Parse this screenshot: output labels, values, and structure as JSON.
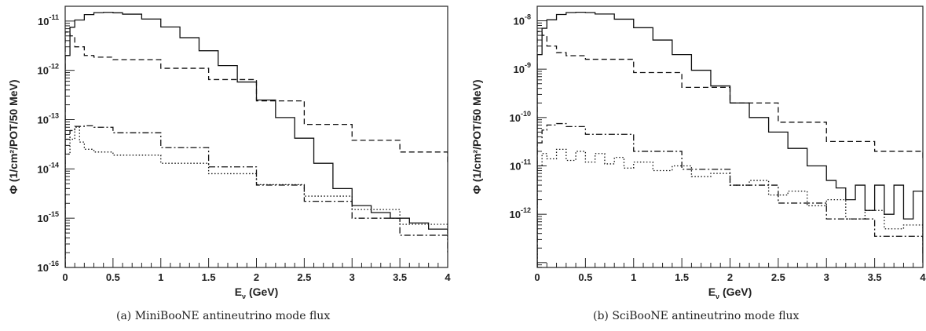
{
  "chart_data": [
    {
      "type": "line",
      "panel": "a",
      "caption": "(a) MiniBooNE antineutrino mode flux",
      "xlabel": "E",
      "xlabel_sub": "ν",
      "xlabel_unit": " (GeV)",
      "ylabel": "Φ (1/cm²/POT/50 MeV)",
      "xlim": [
        0,
        4
      ],
      "ylim_log10": [
        -16,
        -10.7
      ],
      "log_y": true,
      "xticks": [
        "0",
        "0.5",
        "1",
        "1.5",
        "2",
        "2.5",
        "3",
        "3.5",
        "4"
      ],
      "yticks": [
        {
          "exp": "-11"
        },
        {
          "exp": "-12"
        },
        {
          "exp": "-13"
        },
        {
          "exp": "-14"
        },
        {
          "exp": "-15"
        },
        {
          "exp": "-16"
        }
      ],
      "series": [
        {
          "style": "solid",
          "x": [
            0.0,
            0.05,
            0.1,
            0.2,
            0.3,
            0.4,
            0.5,
            0.6,
            0.8,
            1.0,
            1.2,
            1.4,
            1.6,
            1.8,
            2.0,
            2.2,
            2.4,
            2.6,
            2.8,
            3.0,
            3.2,
            3.4,
            3.6,
            3.8,
            4.0
          ],
          "y": [
            2e-12,
            7.5e-12,
            1.05e-11,
            1.35e-11,
            1.48e-11,
            1.5e-11,
            1.47e-11,
            1.38e-11,
            1.1e-11,
            7.6e-12,
            4.6e-12,
            2.5e-12,
            1.25e-12,
            5.8e-13,
            2.5e-13,
            1.1e-13,
            4.2e-14,
            1.3e-14,
            4e-15,
            1.8e-15,
            1.3e-15,
            1e-15,
            8e-16,
            6e-16,
            5e-16
          ]
        },
        {
          "style": "dashed",
          "x": [
            0.0,
            0.05,
            0.1,
            0.2,
            0.3,
            0.5,
            1.0,
            1.5,
            2.0,
            2.5,
            3.0,
            3.5,
            4.0
          ],
          "y": [
            6e-12,
            5e-12,
            3e-12,
            2e-12,
            1.85e-12,
            1.65e-12,
            1.1e-12,
            6.5e-13,
            2.4e-13,
            8e-14,
            3.8e-14,
            2.2e-14,
            1.3e-14
          ]
        },
        {
          "style": "dashdot",
          "x": [
            0.0,
            0.05,
            0.1,
            0.2,
            0.3,
            0.5,
            1.0,
            1.5,
            2.0,
            2.5,
            3.0,
            3.5,
            4.0
          ],
          "y": [
            4e-14,
            6e-14,
            7.3e-14,
            7.5e-14,
            7e-14,
            5.4e-14,
            2.7e-14,
            1.1e-14,
            4.7e-15,
            2.2e-15,
            1e-15,
            4.5e-16,
            2e-16
          ]
        },
        {
          "style": "dotted",
          "x": [
            0.0,
            0.05,
            0.1,
            0.15,
            0.2,
            0.3,
            0.5,
            1.0,
            1.5,
            2.0,
            2.5,
            3.0,
            3.5,
            4.0
          ],
          "y": [
            2e-14,
            4e-14,
            7e-14,
            3.5e-14,
            2.5e-14,
            2.2e-14,
            1.9e-14,
            1.3e-14,
            8e-15,
            4.8e-15,
            2.8e-15,
            1.5e-15,
            7.5e-16,
            3.5e-16
          ]
        }
      ]
    },
    {
      "type": "line",
      "panel": "b",
      "caption": "(b) SciBooNE antineutrino mode flux",
      "xlabel": "E",
      "xlabel_sub": "ν",
      "xlabel_unit": " (GeV)",
      "ylabel": "Φ (1/cm²/POT/50 MeV)",
      "xlim": [
        0,
        4
      ],
      "ylim_log10": [
        -13.1,
        -7.7
      ],
      "log_y": true,
      "xticks": [
        "0",
        "0.5",
        "1",
        "1.5",
        "2",
        "2.5",
        "3",
        "3.5",
        "4"
      ],
      "yticks": [
        {
          "exp": "-8"
        },
        {
          "exp": "-9"
        },
        {
          "exp": "-10"
        },
        {
          "exp": "-11"
        },
        {
          "exp": "-12"
        }
      ],
      "series": [
        {
          "style": "solid",
          "x": [
            0.0,
            0.05,
            0.1,
            0.2,
            0.3,
            0.4,
            0.5,
            0.6,
            0.8,
            1.0,
            1.2,
            1.4,
            1.6,
            1.8,
            2.0,
            2.2,
            2.4,
            2.6,
            2.8,
            3.0,
            3.1,
            3.2,
            3.3,
            3.4,
            3.5,
            3.6,
            3.7,
            3.8,
            3.9,
            4.0
          ],
          "y": [
            2e-09,
            7e-09,
            1.05e-08,
            1.35e-08,
            1.48e-08,
            1.5e-08,
            1.48e-08,
            1.38e-08,
            1.08e-08,
            7.2e-09,
            4e-09,
            2e-09,
            9.5e-10,
            4.5e-10,
            2e-10,
            1e-10,
            5e-11,
            2.3e-11,
            1e-11,
            5e-12,
            3.5e-12,
            2e-12,
            4e-12,
            1.2e-12,
            4e-12,
            1e-12,
            4e-12,
            8e-13,
            3e-12,
            1e-13
          ]
        },
        {
          "style": "dashed",
          "x": [
            0.0,
            0.05,
            0.1,
            0.2,
            0.3,
            0.5,
            1.0,
            1.5,
            2.0,
            2.5,
            3.0,
            3.5,
            4.0
          ],
          "y": [
            6e-09,
            5e-09,
            3e-09,
            2.2e-09,
            1.9e-09,
            1.6e-09,
            8.5e-10,
            4.2e-10,
            2e-10,
            8e-11,
            3.2e-11,
            2e-11,
            1.3e-11
          ]
        },
        {
          "style": "dashdot",
          "x": [
            0.0,
            0.05,
            0.1,
            0.2,
            0.3,
            0.5,
            1.0,
            1.5,
            2.0,
            2.5,
            3.0,
            3.5,
            4.0
          ],
          "y": [
            3e-11,
            5.5e-11,
            7e-11,
            7.5e-11,
            6.5e-11,
            4.5e-11,
            2e-11,
            8.5e-12,
            4e-12,
            1.7e-12,
            8e-13,
            3.5e-13,
            1.5e-13
          ]
        },
        {
          "style": "dotted",
          "x": [
            0.0,
            0.05,
            0.1,
            0.2,
            0.3,
            0.4,
            0.5,
            0.6,
            0.7,
            0.8,
            0.9,
            1.0,
            1.2,
            1.4,
            1.6,
            1.8,
            2.0,
            2.2,
            2.4,
            2.6,
            2.8,
            3.0,
            3.2,
            3.4,
            3.6,
            3.8,
            4.0
          ],
          "y": [
            1e-11,
            1.8e-11,
            1.4e-11,
            2.2e-11,
            1.3e-11,
            2e-11,
            1.2e-11,
            1.8e-11,
            1.1e-11,
            1.5e-11,
            9e-12,
            1.2e-11,
            8e-12,
            1e-11,
            6e-12,
            7e-12,
            4e-12,
            5e-12,
            2.5e-12,
            3e-12,
            1.5e-12,
            2e-12,
            8e-13,
            1.2e-12,
            5e-13,
            6e-13,
            3e-13
          ]
        }
      ]
    }
  ]
}
